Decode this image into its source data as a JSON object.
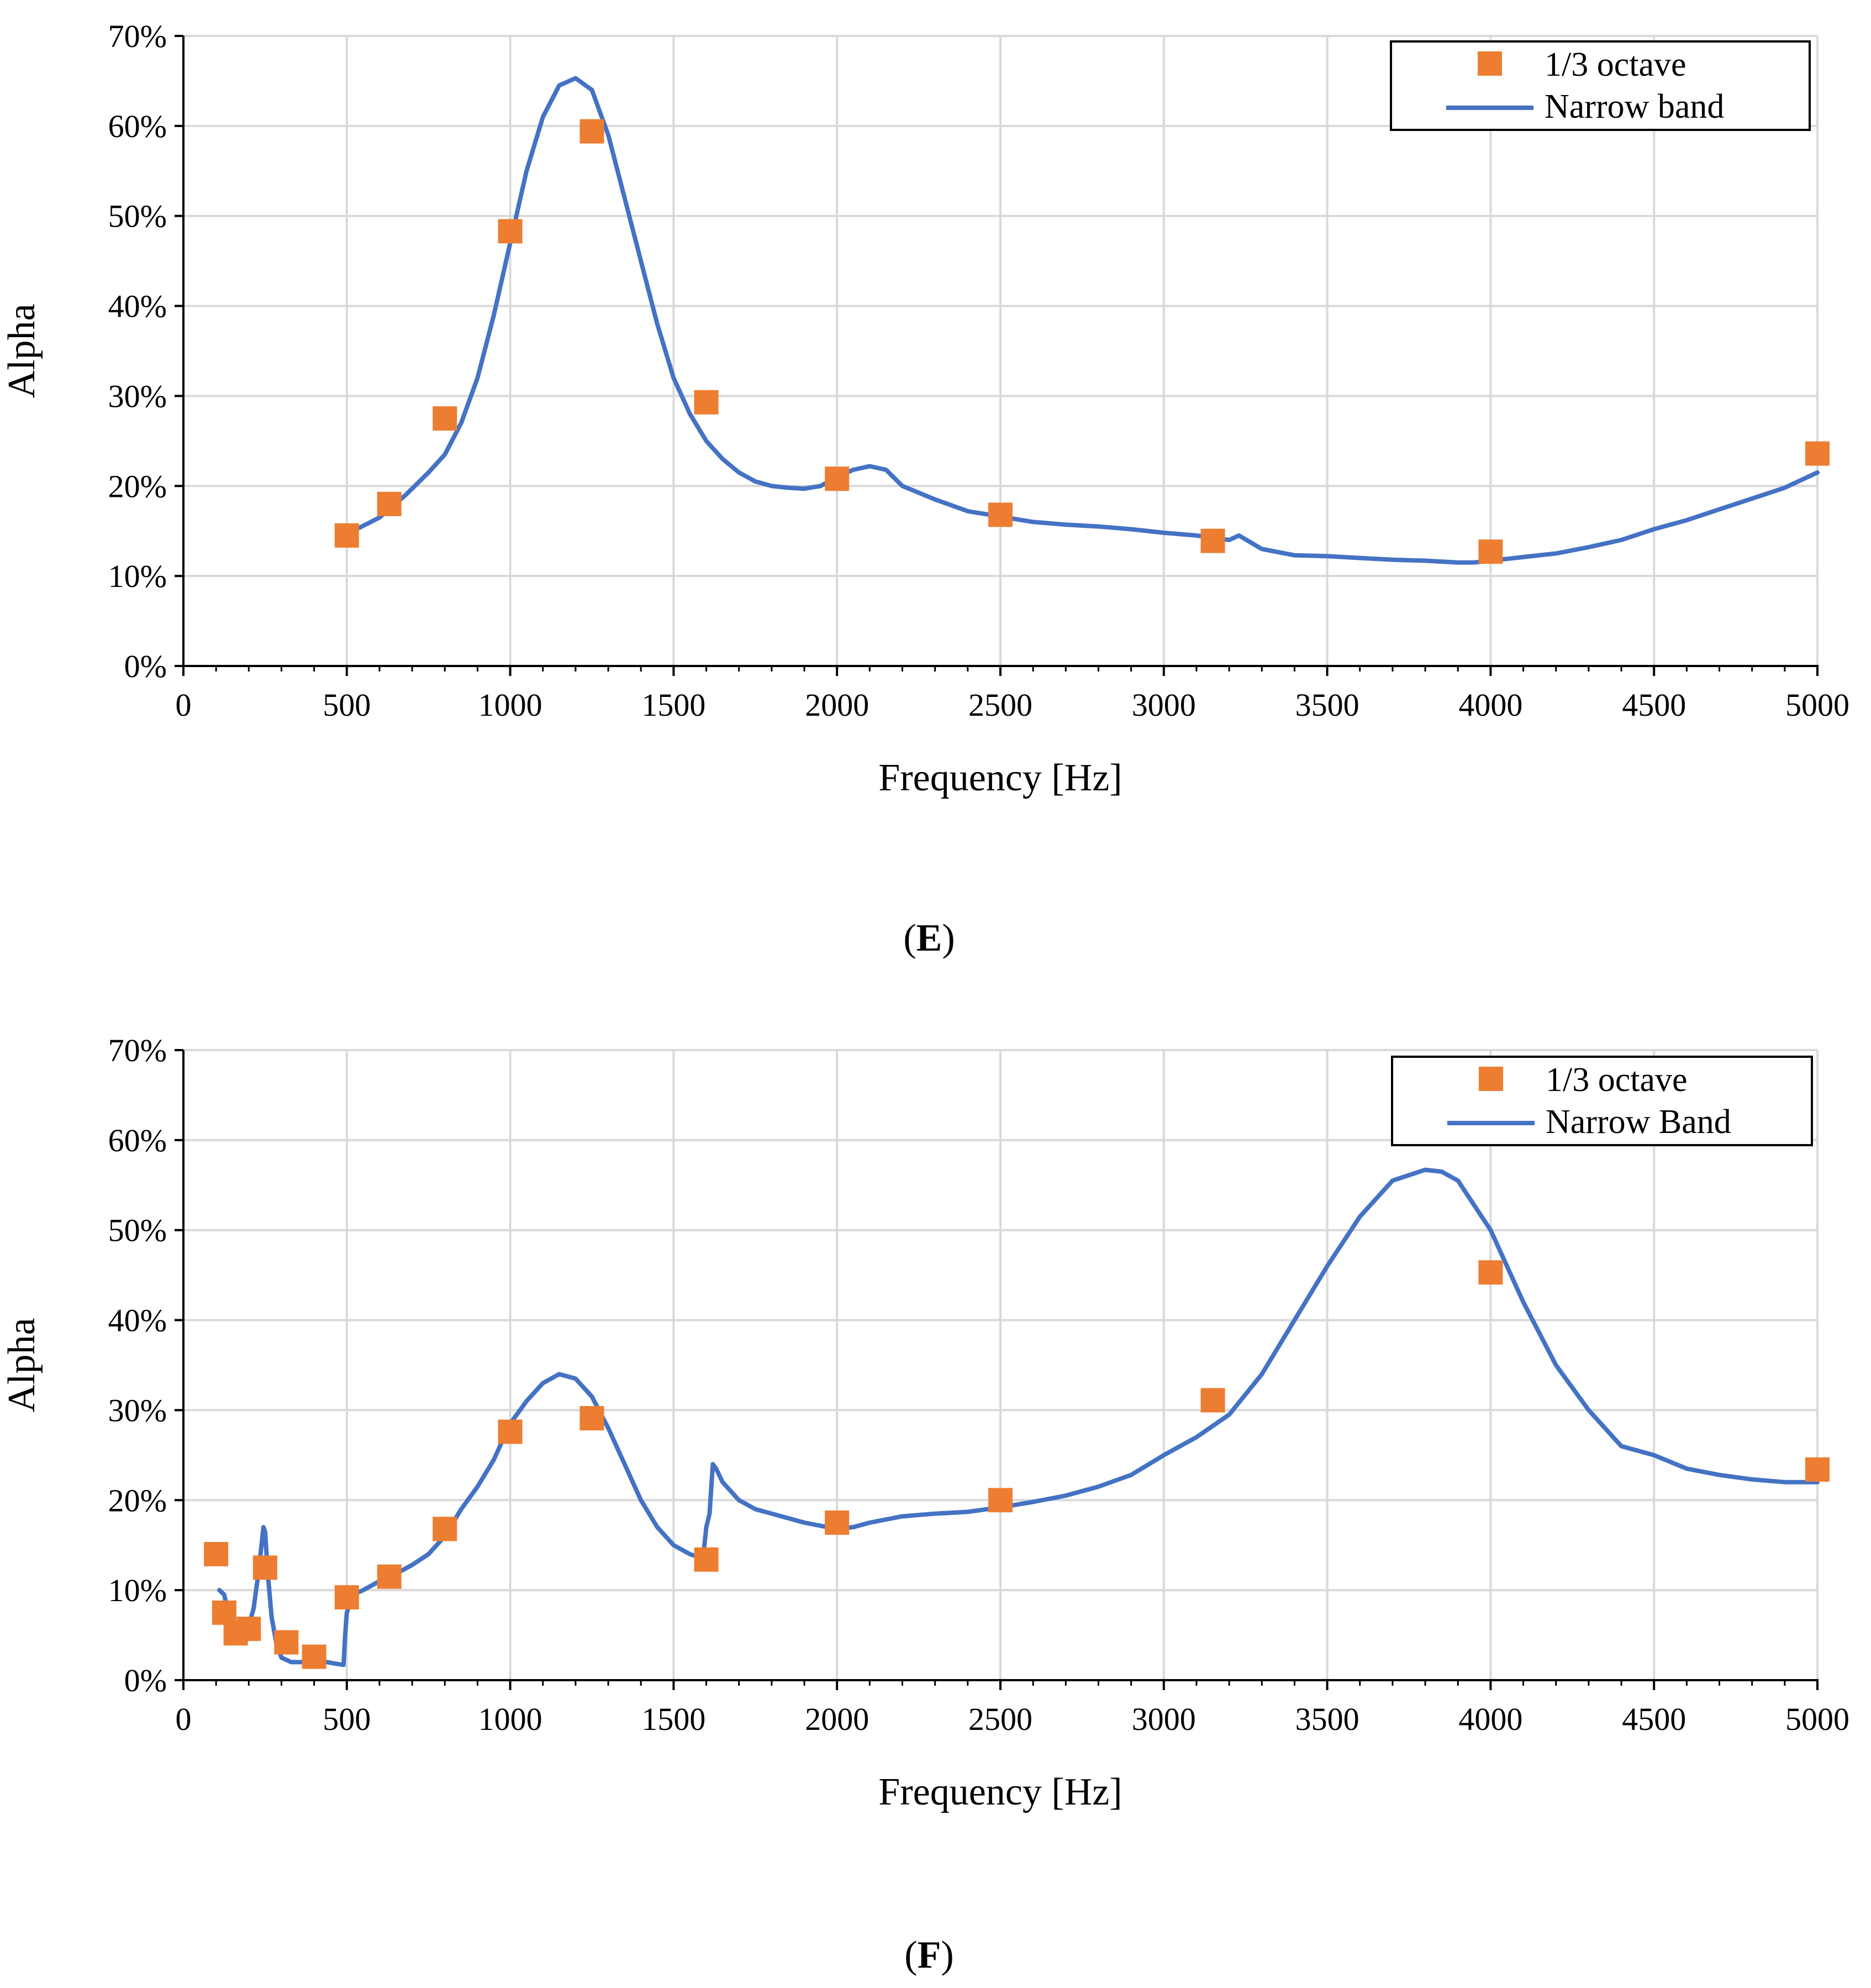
{
  "chart_data": [
    {
      "id": "E",
      "type": "line",
      "panel_label": "E",
      "xlabel": "Frequency [Hz]",
      "ylabel": "Alpha",
      "xlim": [
        0,
        5000
      ],
      "ylim": [
        0,
        0.7
      ],
      "xticks": [
        0,
        500,
        1000,
        1500,
        2000,
        2500,
        3000,
        3500,
        4000,
        4500,
        5000
      ],
      "xtick_labels": [
        "0",
        "500",
        "1000",
        "1500",
        "2000",
        "2500",
        "3000",
        "3500",
        "4000",
        "4500",
        "5000"
      ],
      "yticks": [
        0,
        0.1,
        0.2,
        0.3,
        0.4,
        0.5,
        0.6,
        0.7
      ],
      "ytick_labels": [
        "0%",
        "10%",
        "20%",
        "30%",
        "40%",
        "50%",
        "60%",
        "70%"
      ],
      "grid": true,
      "legend_position": "top-right",
      "colors": {
        "octave": "#ED7D31",
        "narrow": "#4472C4"
      },
      "series": [
        {
          "name": "1/3 octave",
          "kind": "scatter",
          "x": [
            500,
            630,
            800,
            1000,
            1250,
            1600,
            2000,
            2500,
            3150,
            4000,
            5000
          ],
          "y": [
            0.145,
            0.18,
            0.275,
            0.483,
            0.594,
            0.293,
            0.208,
            0.168,
            0.139,
            0.127,
            0.236
          ]
        },
        {
          "name": "Narrow band",
          "kind": "line",
          "x": [
            530,
            600,
            680,
            750,
            800,
            850,
            900,
            950,
            1000,
            1050,
            1100,
            1150,
            1200,
            1250,
            1300,
            1350,
            1400,
            1450,
            1500,
            1550,
            1600,
            1650,
            1700,
            1750,
            1800,
            1850,
            1900,
            1950,
            2000,
            2050,
            2100,
            2150,
            2200,
            2300,
            2400,
            2500,
            2600,
            2700,
            2800,
            2900,
            3000,
            3100,
            3200,
            3230,
            3300,
            3400,
            3500,
            3600,
            3700,
            3800,
            3900,
            3950,
            4000,
            4100,
            4200,
            4300,
            4400,
            4500,
            4600,
            4700,
            4800,
            4900,
            5000
          ],
          "y": [
            0.152,
            0.165,
            0.19,
            0.215,
            0.235,
            0.27,
            0.32,
            0.39,
            0.47,
            0.55,
            0.61,
            0.645,
            0.653,
            0.64,
            0.59,
            0.52,
            0.45,
            0.38,
            0.32,
            0.28,
            0.25,
            0.23,
            0.215,
            0.205,
            0.2,
            0.198,
            0.197,
            0.2,
            0.21,
            0.218,
            0.222,
            0.218,
            0.2,
            0.185,
            0.172,
            0.166,
            0.16,
            0.157,
            0.155,
            0.152,
            0.148,
            0.145,
            0.14,
            0.145,
            0.13,
            0.123,
            0.122,
            0.12,
            0.118,
            0.117,
            0.115,
            0.115,
            0.117,
            0.121,
            0.125,
            0.132,
            0.14,
            0.152,
            0.162,
            0.174,
            0.186,
            0.198,
            0.215
          ]
        }
      ]
    },
    {
      "id": "F",
      "type": "line",
      "panel_label": "F",
      "xlabel": "Frequency [Hz]",
      "ylabel": "Alpha",
      "xlim": [
        0,
        5000
      ],
      "ylim": [
        0,
        0.7
      ],
      "xticks": [
        0,
        500,
        1000,
        1500,
        2000,
        2500,
        3000,
        3500,
        4000,
        4500,
        5000
      ],
      "xtick_labels": [
        "0",
        "500",
        "1000",
        "1500",
        "2000",
        "2500",
        "3000",
        "3500",
        "4000",
        "4500",
        "5000"
      ],
      "yticks": [
        0,
        0.1,
        0.2,
        0.3,
        0.4,
        0.5,
        0.6,
        0.7
      ],
      "ytick_labels": [
        "0%",
        "10%",
        "20%",
        "30%",
        "40%",
        "50%",
        "60%",
        "70%"
      ],
      "grid": true,
      "legend_position": "top-right",
      "colors": {
        "octave": "#ED7D31",
        "narrow": "#4472C4"
      },
      "series": [
        {
          "name": "1/3 octave",
          "kind": "scatter",
          "x": [
            100,
            125,
            160,
            200,
            250,
            315,
            400,
            500,
            630,
            800,
            1000,
            1250,
            1600,
            2000,
            2500,
            3150,
            4000,
            5000
          ],
          "y": [
            0.14,
            0.075,
            0.052,
            0.057,
            0.125,
            0.042,
            0.026,
            0.092,
            0.115,
            0.168,
            0.276,
            0.291,
            0.134,
            0.175,
            0.2,
            0.311,
            0.453,
            0.234
          ]
        },
        {
          "name": "Narrow Band",
          "kind": "line",
          "x": [
            110,
            125,
            140,
            160,
            180,
            200,
            215,
            230,
            245,
            250,
            258,
            270,
            285,
            300,
            330,
            360,
            400,
            440,
            470,
            490,
            495,
            500,
            520,
            550,
            600,
            650,
            700,
            750,
            800,
            850,
            900,
            950,
            1000,
            1050,
            1100,
            1150,
            1200,
            1250,
            1300,
            1350,
            1400,
            1450,
            1500,
            1550,
            1590,
            1600,
            1610,
            1620,
            1630,
            1650,
            1700,
            1750,
            1800,
            1900,
            2000,
            2050,
            2100,
            2200,
            2300,
            2400,
            2500,
            2600,
            2700,
            2800,
            2900,
            3000,
            3100,
            3200,
            3300,
            3400,
            3500,
            3600,
            3700,
            3800,
            3850,
            3900,
            4000,
            4100,
            4200,
            4300,
            4400,
            4500,
            4600,
            4700,
            4800,
            4900,
            5000
          ],
          "y": [
            0.1,
            0.095,
            0.07,
            0.055,
            0.052,
            0.06,
            0.08,
            0.12,
            0.17,
            0.165,
            0.12,
            0.07,
            0.04,
            0.025,
            0.02,
            0.02,
            0.022,
            0.02,
            0.018,
            0.017,
            0.05,
            0.075,
            0.095,
            0.1,
            0.11,
            0.118,
            0.128,
            0.14,
            0.16,
            0.19,
            0.215,
            0.245,
            0.285,
            0.31,
            0.33,
            0.34,
            0.335,
            0.315,
            0.28,
            0.24,
            0.2,
            0.17,
            0.15,
            0.14,
            0.135,
            0.17,
            0.185,
            0.24,
            0.235,
            0.22,
            0.2,
            0.19,
            0.185,
            0.175,
            0.168,
            0.17,
            0.175,
            0.182,
            0.185,
            0.187,
            0.192,
            0.198,
            0.205,
            0.215,
            0.228,
            0.25,
            0.27,
            0.295,
            0.34,
            0.4,
            0.46,
            0.515,
            0.555,
            0.567,
            0.565,
            0.555,
            0.5,
            0.42,
            0.35,
            0.3,
            0.26,
            0.25,
            0.235,
            0.228,
            0.223,
            0.22,
            0.22
          ]
        }
      ]
    }
  ]
}
